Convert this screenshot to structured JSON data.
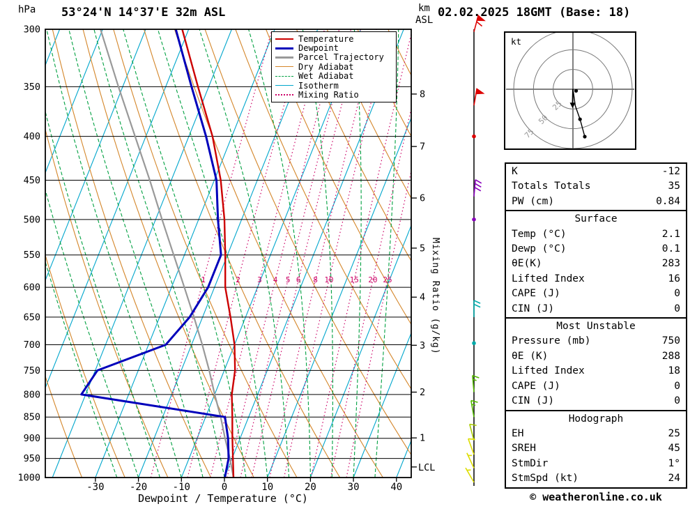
{
  "header": {
    "station": "53°24'N 14°37'E 32m ASL",
    "datetime": "02.02.2025 18GMT (Base: 18)",
    "pressure_unit": "hPa",
    "km_label": "km",
    "asl_label": "ASL"
  },
  "footer": {
    "copyright": "© weatheronline.co.uk"
  },
  "axes": {
    "xlabel": "Dewpoint / Temperature (°C)",
    "mixing_ratio_axis_label": "Mixing Ratio (g/kg)",
    "lcl_label": "LCL",
    "pressure_ticks": [
      300,
      350,
      400,
      450,
      500,
      550,
      600,
      650,
      700,
      750,
      800,
      850,
      900,
      950,
      1000
    ],
    "temp_ticks": [
      -30,
      -20,
      -10,
      0,
      10,
      20,
      30,
      40
    ],
    "km_ticks": [
      {
        "km": 8,
        "p": 357
      },
      {
        "km": 7,
        "p": 411
      },
      {
        "km": 6,
        "p": 472
      },
      {
        "km": 5,
        "p": 540
      },
      {
        "km": 4,
        "p": 616
      },
      {
        "km": 3,
        "p": 701
      },
      {
        "km": 2,
        "p": 795
      },
      {
        "km": 1,
        "p": 899
      }
    ],
    "lcl_pressure": 972,
    "mixing_ratio_values": [
      1,
      2,
      3,
      4,
      5,
      6,
      8,
      10,
      15,
      20,
      25
    ]
  },
  "legend": [
    {
      "label": "Temperature",
      "color": "#cc0000",
      "px": 2.5,
      "line": "solid"
    },
    {
      "label": "Dewpoint",
      "color": "#0000bb",
      "px": 3.5,
      "line": "solid"
    },
    {
      "label": "Parcel Trajectory",
      "color": "#999999",
      "px": 3,
      "line": "solid"
    },
    {
      "label": "Dry Adiabat",
      "color": "#d4862a",
      "px": 1.5,
      "line": "solid"
    },
    {
      "label": "Wet Adiabat",
      "color": "#00a040",
      "px": 1.5,
      "line": "dashed"
    },
    {
      "label": "Isotherm",
      "color": "#00a6cc",
      "px": 1.5,
      "line": "solid"
    },
    {
      "label": "Mixing Ratio",
      "color": "#cc0066",
      "px": 2,
      "line": "dotted"
    }
  ],
  "chart_data": {
    "type": "line",
    "title": "Skew-T log-P sounding",
    "y_axis": {
      "label": "hPa",
      "scale": "log",
      "range": [
        300,
        1000
      ]
    },
    "x_axis": {
      "label": "Dewpoint / Temperature (°C)",
      "surface_range": [
        -41.7,
        43.4
      ],
      "ticks": [
        -30,
        -20,
        -10,
        0,
        10,
        20,
        30,
        40
      ]
    },
    "pressure_levels": [
      1000,
      950,
      900,
      850,
      800,
      750,
      700,
      650,
      600,
      550,
      500,
      450,
      400,
      350,
      300
    ],
    "series": [
      {
        "name": "Temperature",
        "color": "#cc0000",
        "values": [
          2.1,
          0.2,
          -1.8,
          -3.8,
          -6,
          -7.5,
          -10,
          -13.5,
          -17.5,
          -20.5,
          -24,
          -28.5,
          -34.5,
          -42.5,
          -51.5
        ]
      },
      {
        "name": "Dewpoint",
        "color": "#0000bb",
        "values": [
          0.1,
          -0.8,
          -2.8,
          -5.5,
          -41,
          -39.5,
          -26,
          -23,
          -21.5,
          -21.5,
          -25.5,
          -29.5,
          -36,
          -44,
          -53
        ]
      },
      {
        "name": "Parcel Trajectory",
        "color": "#999999",
        "values": [
          2.1,
          -0.5,
          -3.5,
          -6.5,
          -10,
          -13.5,
          -17.5,
          -22,
          -27,
          -32.5,
          -38.5,
          -45,
          -52.5,
          -61,
          -70.5
        ]
      }
    ],
    "background": {
      "isotherm_step": 10,
      "dry_adiabat_theta_range": [
        230,
        450,
        10
      ],
      "wet_adiabat_t0_range": [
        -25,
        35,
        5
      ],
      "skew_ratio": 0.4
    }
  },
  "wind_barbs": [
    {
      "p": 302,
      "spd": 60,
      "dir": 15,
      "color": "#dd0000"
    },
    {
      "p": 368,
      "spd": 50,
      "dir": 10,
      "color": "#dd0000"
    },
    {
      "p": 400,
      "spd": 0,
      "dir": 0,
      "color": "#dd0000",
      "dot": true
    },
    {
      "p": 470,
      "spd": 30,
      "dir": 5,
      "color": "#8800bb"
    },
    {
      "p": 500,
      "spd": 0,
      "dir": 0,
      "color": "#8800bb",
      "dot": true
    },
    {
      "p": 650,
      "spd": 20,
      "dir": 0,
      "color": "#00aaaa"
    },
    {
      "p": 697,
      "spd": 0,
      "dir": 0,
      "color": "#00aaaa",
      "dot": true
    },
    {
      "p": 795,
      "spd": 15,
      "dir": 355,
      "color": "#55bb00"
    },
    {
      "p": 850,
      "spd": 15,
      "dir": 350,
      "color": "#55bb00"
    },
    {
      "p": 905,
      "spd": 10,
      "dir": 345,
      "color": "#aacc00"
    },
    {
      "p": 940,
      "spd": 10,
      "dir": 340,
      "color": "#dddd00"
    },
    {
      "p": 975,
      "spd": 5,
      "dir": 335,
      "color": "#dddd00"
    },
    {
      "p": 1013,
      "spd": 5,
      "dir": 330,
      "color": "#dddd00"
    }
  ],
  "hodograph": {
    "unit": "kt",
    "rings": [
      25,
      50,
      75
    ],
    "trace_uv": [
      [
        0,
        0
      ],
      [
        3,
        -21
      ],
      [
        9,
        -38
      ],
      [
        15,
        -60
      ]
    ],
    "dots_uv": [
      [
        4,
        -2
      ],
      [
        9,
        -38
      ],
      [
        15,
        -60
      ]
    ],
    "storm_dir_deg": 1,
    "storm_speed_kt": 24
  },
  "table": {
    "sections": [
      {
        "header": "",
        "rows": [
          [
            "K",
            "-12"
          ],
          [
            "Totals Totals",
            "35"
          ],
          [
            "PW (cm)",
            "0.84"
          ]
        ]
      },
      {
        "header": "Surface",
        "rows": [
          [
            "Temp (°C)",
            "2.1"
          ],
          [
            "Dewp (°C)",
            "0.1"
          ],
          [
            "θE(K)",
            "283"
          ],
          [
            "Lifted Index",
            "16"
          ],
          [
            "CAPE (J)",
            "0"
          ],
          [
            "CIN (J)",
            "0"
          ]
        ]
      },
      {
        "header": "Most Unstable",
        "rows": [
          [
            "Pressure (mb)",
            "750"
          ],
          [
            "θE (K)",
            "288"
          ],
          [
            "Lifted Index",
            "18"
          ],
          [
            "CAPE (J)",
            "0"
          ],
          [
            "CIN (J)",
            "0"
          ]
        ]
      },
      {
        "header": "Hodograph",
        "rows": [
          [
            "EH",
            "25"
          ],
          [
            "SREH",
            "45"
          ],
          [
            "StmDir",
            "1°"
          ],
          [
            "StmSpd (kt)",
            "24"
          ]
        ]
      }
    ]
  }
}
